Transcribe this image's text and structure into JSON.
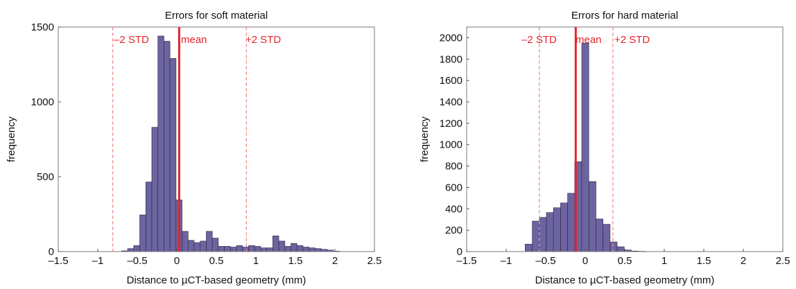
{
  "chart_data": [
    {
      "type": "bar",
      "title": "Errors for soft material",
      "xlabel": "Distance to µCT-based geometry (mm)",
      "ylabel": "frequency",
      "xlim": [
        -1.5,
        2.5
      ],
      "ylim": [
        0,
        1500
      ],
      "xticks": [
        -1.5,
        -1,
        -0.5,
        0,
        0.5,
        1,
        1.5,
        2,
        2.5
      ],
      "xtick_labels": [
        "–1.5",
        "–1",
        "–0.5",
        "0",
        "0.5",
        "1",
        "1.5",
        "2",
        "2.5"
      ],
      "yticks": [
        0,
        500,
        1000,
        1500
      ],
      "ytick_labels": [
        "0",
        "500",
        "1000",
        "1500"
      ],
      "bin_width": 0.0765,
      "bin_centers": [
        -0.66,
        -0.584,
        -0.507,
        -0.431,
        -0.354,
        -0.278,
        -0.201,
        -0.125,
        -0.048,
        0.028,
        0.105,
        0.181,
        0.258,
        0.334,
        0.411,
        0.487,
        0.564,
        0.64,
        0.717,
        0.793,
        0.87,
        0.946,
        1.023,
        1.099,
        1.176,
        1.252,
        1.329,
        1.405,
        1.482,
        1.558,
        1.635,
        1.711,
        1.788,
        1.864,
        1.941,
        2.017
      ],
      "values": [
        5,
        20,
        40,
        245,
        465,
        830,
        1440,
        1405,
        1290,
        345,
        135,
        75,
        60,
        70,
        135,
        90,
        35,
        35,
        30,
        40,
        30,
        40,
        35,
        25,
        25,
        105,
        70,
        35,
        55,
        40,
        30,
        25,
        20,
        15,
        10,
        3
      ],
      "bar_color": "#6b64a0",
      "mean": 0.03,
      "std_lines": [
        -0.81,
        0.88
      ],
      "annotations": [
        "–2 STD",
        "mean",
        "+2 STD"
      ]
    },
    {
      "type": "bar",
      "title": "Errors for hard material",
      "xlabel": "Distance to µCT-based geometry (mm)",
      "ylabel": "frequency",
      "xlim": [
        -1.5,
        2.5
      ],
      "ylim": [
        0,
        2100
      ],
      "xticks": [
        -1.5,
        -1,
        -0.5,
        0,
        0.5,
        1,
        1.5,
        2,
        2.5
      ],
      "xtick_labels": [
        "–1.5",
        "–1",
        "–0.5",
        "0",
        "0.5",
        "1",
        "1.5",
        "2",
        "2.5"
      ],
      "yticks": [
        0,
        200,
        400,
        600,
        800,
        1000,
        1200,
        1400,
        1600,
        1800,
        2000
      ],
      "ytick_labels": [
        "0",
        "200",
        "400",
        "600",
        "800",
        "1000",
        "1200",
        "1400",
        "1600",
        "1800",
        "2000"
      ],
      "bin_width": 0.0895,
      "bin_centers": [
        -0.715,
        -0.625,
        -0.536,
        -0.446,
        -0.357,
        -0.267,
        -0.178,
        -0.088,
        0.001,
        0.091,
        0.18,
        0.27,
        0.359,
        0.449,
        0.538,
        0.628,
        0.717
      ],
      "values": [
        70,
        285,
        320,
        365,
        410,
        455,
        545,
        840,
        1950,
        655,
        305,
        255,
        90,
        45,
        15,
        5,
        3
      ],
      "bar_color": "#6b64a0",
      "mean": -0.12,
      "std_lines": [
        -0.58,
        0.35
      ],
      "annotations": [
        "–2 STD",
        "mean",
        "+2 STD"
      ]
    }
  ]
}
